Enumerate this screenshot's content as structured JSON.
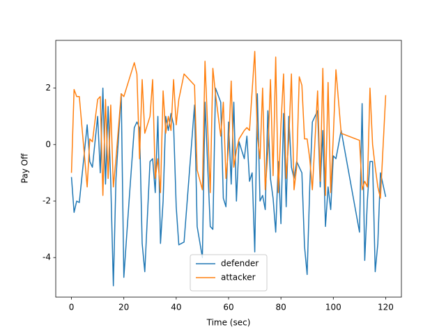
{
  "chart_data": {
    "type": "line",
    "xlabel": "Time (sec)",
    "ylabel": "Pay Off",
    "x": [
      0,
      1,
      2,
      3,
      6,
      7,
      8,
      10,
      11,
      12,
      13,
      14,
      15,
      16,
      17,
      19,
      20,
      22,
      24,
      25,
      26,
      27,
      28,
      30,
      31,
      32,
      33,
      34,
      35,
      36,
      37,
      38,
      39,
      40,
      41,
      43,
      47,
      48,
      50,
      51,
      53,
      54,
      55,
      57,
      58,
      59,
      60,
      61,
      62,
      63,
      64,
      66,
      67,
      68,
      69,
      70,
      71,
      72,
      73,
      74,
      75,
      76,
      77,
      78,
      79,
      80,
      81,
      82,
      83,
      84,
      85,
      86,
      87,
      88,
      89,
      90,
      91,
      92,
      94,
      95,
      96,
      97,
      98,
      99,
      100,
      101,
      103,
      110,
      111,
      112,
      113,
      114,
      115,
      116,
      117,
      118,
      120
    ],
    "series": [
      {
        "name": "defender",
        "color": "#1f77b4",
        "values": [
          -1.15,
          -2.4,
          -2,
          -2.05,
          0.7,
          -0.6,
          -0.8,
          1,
          -1,
          2,
          -1.4,
          1.35,
          -1.3,
          -5,
          -1.2,
          1.8,
          -4.7,
          -2,
          0.6,
          0.8,
          0.6,
          -3.5,
          -4.5,
          -0.6,
          -0.5,
          -1.7,
          1,
          -3.5,
          -2,
          1,
          0.5,
          1.1,
          0.7,
          -2.2,
          -3.55,
          -3.45,
          1.4,
          -2.9,
          -4,
          1.5,
          -2.9,
          -3,
          2,
          1.5,
          -1.9,
          -2.2,
          0.8,
          -1.4,
          1.5,
          -2,
          0.1,
          -0.5,
          0.3,
          -1.3,
          -1,
          -3.8,
          1.8,
          -2,
          -1.8,
          -2.3,
          1.2,
          -1.2,
          -1.9,
          -3.1,
          -0.6,
          -2.8,
          1.1,
          -2.2,
          1,
          -0.8,
          -1.2,
          -0.6,
          -0.8,
          -1,
          -3.6,
          -4.6,
          -1.5,
          0.8,
          1.2,
          -1.5,
          0.5,
          -2.9,
          -1.5,
          -2.3,
          -0.4,
          -0.5,
          0.5,
          -3.1,
          1.45,
          -4.1,
          -2,
          -0.6,
          -0.6,
          -4.5,
          -3.5,
          -1,
          -1.85
        ]
      },
      {
        "name": "attacker",
        "color": "#ff7f0e",
        "values": [
          -1,
          1.95,
          1.7,
          1.7,
          -1.5,
          0.2,
          0.1,
          1.6,
          1.7,
          -1.8,
          1.6,
          -1.2,
          1.4,
          -1.5,
          -0.5,
          1.8,
          1.7,
          2.3,
          2.9,
          2.5,
          -0.5,
          2.3,
          0.4,
          1,
          2.3,
          -1.2,
          -0.5,
          -1.7,
          1.9,
          0.4,
          1,
          0.5,
          2.3,
          0.7,
          1.6,
          2.5,
          2.1,
          -0.9,
          -1.6,
          2.95,
          -1.7,
          2.7,
          1.8,
          0.3,
          1.5,
          -1.2,
          -0.1,
          2.25,
          -0.8,
          -0.2,
          0.2,
          0.5,
          0.6,
          0.5,
          1.9,
          3.3,
          0.3,
          -0.5,
          2,
          -1.6,
          -0.3,
          2.3,
          -1.1,
          3.1,
          -1.7,
          0.7,
          2.5,
          -1.2,
          0.2,
          2.5,
          -1.6,
          -0.8,
          2.4,
          2.1,
          0.2,
          0.2,
          -0.5,
          -1.6,
          1.9,
          -1.3,
          2.7,
          -1.8,
          2.2,
          -1.7,
          0.3,
          2.65,
          0.4,
          0.15,
          -1.6,
          -1.3,
          -1.5,
          2,
          0,
          -0.8,
          -1.5,
          -1.9,
          1.75
        ]
      }
    ],
    "xlim": [
      -6,
      126
    ],
    "ylim": [
      -5.4,
      3.69
    ],
    "xticks": [
      0,
      20,
      40,
      60,
      80,
      100,
      120
    ],
    "yticks": [
      -4,
      -2,
      0,
      2
    ],
    "legend": "lower center"
  }
}
